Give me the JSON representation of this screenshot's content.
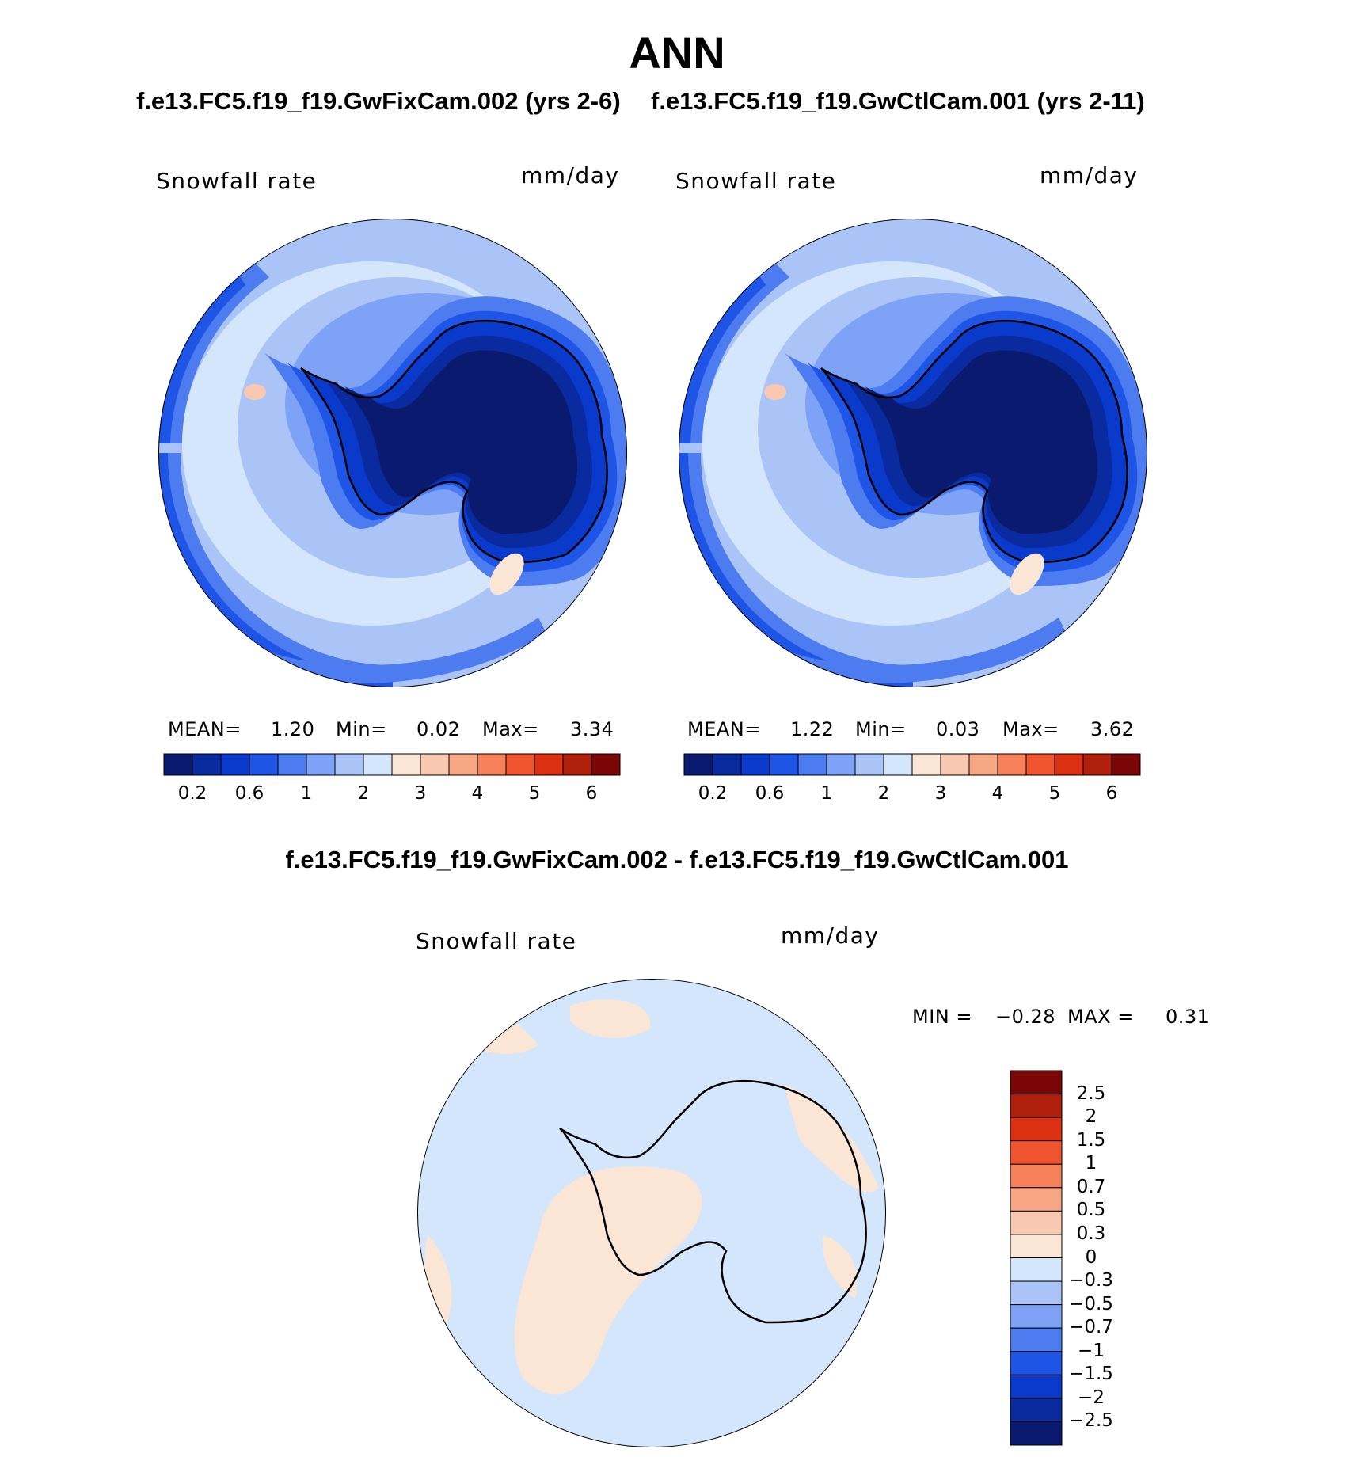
{
  "title": "ANN",
  "case1_title": "f.e13.FC5.f19_f19.GwFixCam.002 (yrs 2-6)",
  "case2_title": "f.e13.FC5.f19_f19.GwCtlCam.001 (yrs 2-11)",
  "diff_title": "f.e13.FC5.f19_f19.GwFixCam.002 - f.e13.FC5.f19_f19.GwCtlCam.001",
  "panels": [
    {
      "variable": "Snowfall rate",
      "units": "mm/day",
      "mean_label": "MEAN=",
      "mean": "1.20",
      "min_label": "Min=",
      "min": "0.02",
      "max_label": "Max=",
      "max": "3.34"
    },
    {
      "variable": "Snowfall rate",
      "units": "mm/day",
      "mean_label": "MEAN=",
      "mean": "1.22",
      "min_label": "Min=",
      "min": "0.03",
      "max_label": "Max=",
      "max": "3.62"
    }
  ],
  "diff_panel": {
    "variable": "Snowfall rate",
    "units": "mm/day",
    "min_label": "MIN =",
    "min": "−0.28",
    "max_label": "MAX =",
    "max": "0.31"
  },
  "abs_colorbar": {
    "colors": [
      "#0a1a6e",
      "#0a2aa0",
      "#0a3acc",
      "#1f55e6",
      "#4c7cf0",
      "#7ea2f5",
      "#aac4f8",
      "#d3e6fb",
      "#fbe6d6",
      "#f9c8b0",
      "#f7a784",
      "#f5805a",
      "#f05530",
      "#dc3012",
      "#b01e0c",
      "#7a0606"
    ],
    "ticks": [
      "0.2",
      "0.6",
      "1",
      "2",
      "3",
      "4",
      "5",
      "6"
    ]
  },
  "diff_colorbar": {
    "colors": [
      "#7a0606",
      "#b01e0c",
      "#dc3012",
      "#f05530",
      "#f5805a",
      "#f7a784",
      "#f9c8b0",
      "#fbe6d6",
      "#d3e6fb",
      "#aac4f8",
      "#7ea2f5",
      "#4c7cf0",
      "#1f55e6",
      "#0a3acc",
      "#0a2aa0",
      "#0a1a6e"
    ],
    "labels": [
      "2.5",
      "2",
      "1.5",
      "1",
      "0.7",
      "0.5",
      "0.3",
      "0",
      "−0.3",
      "−0.5",
      "−0.7",
      "−1",
      "−1.5",
      "−2",
      "−2.5"
    ]
  }
}
